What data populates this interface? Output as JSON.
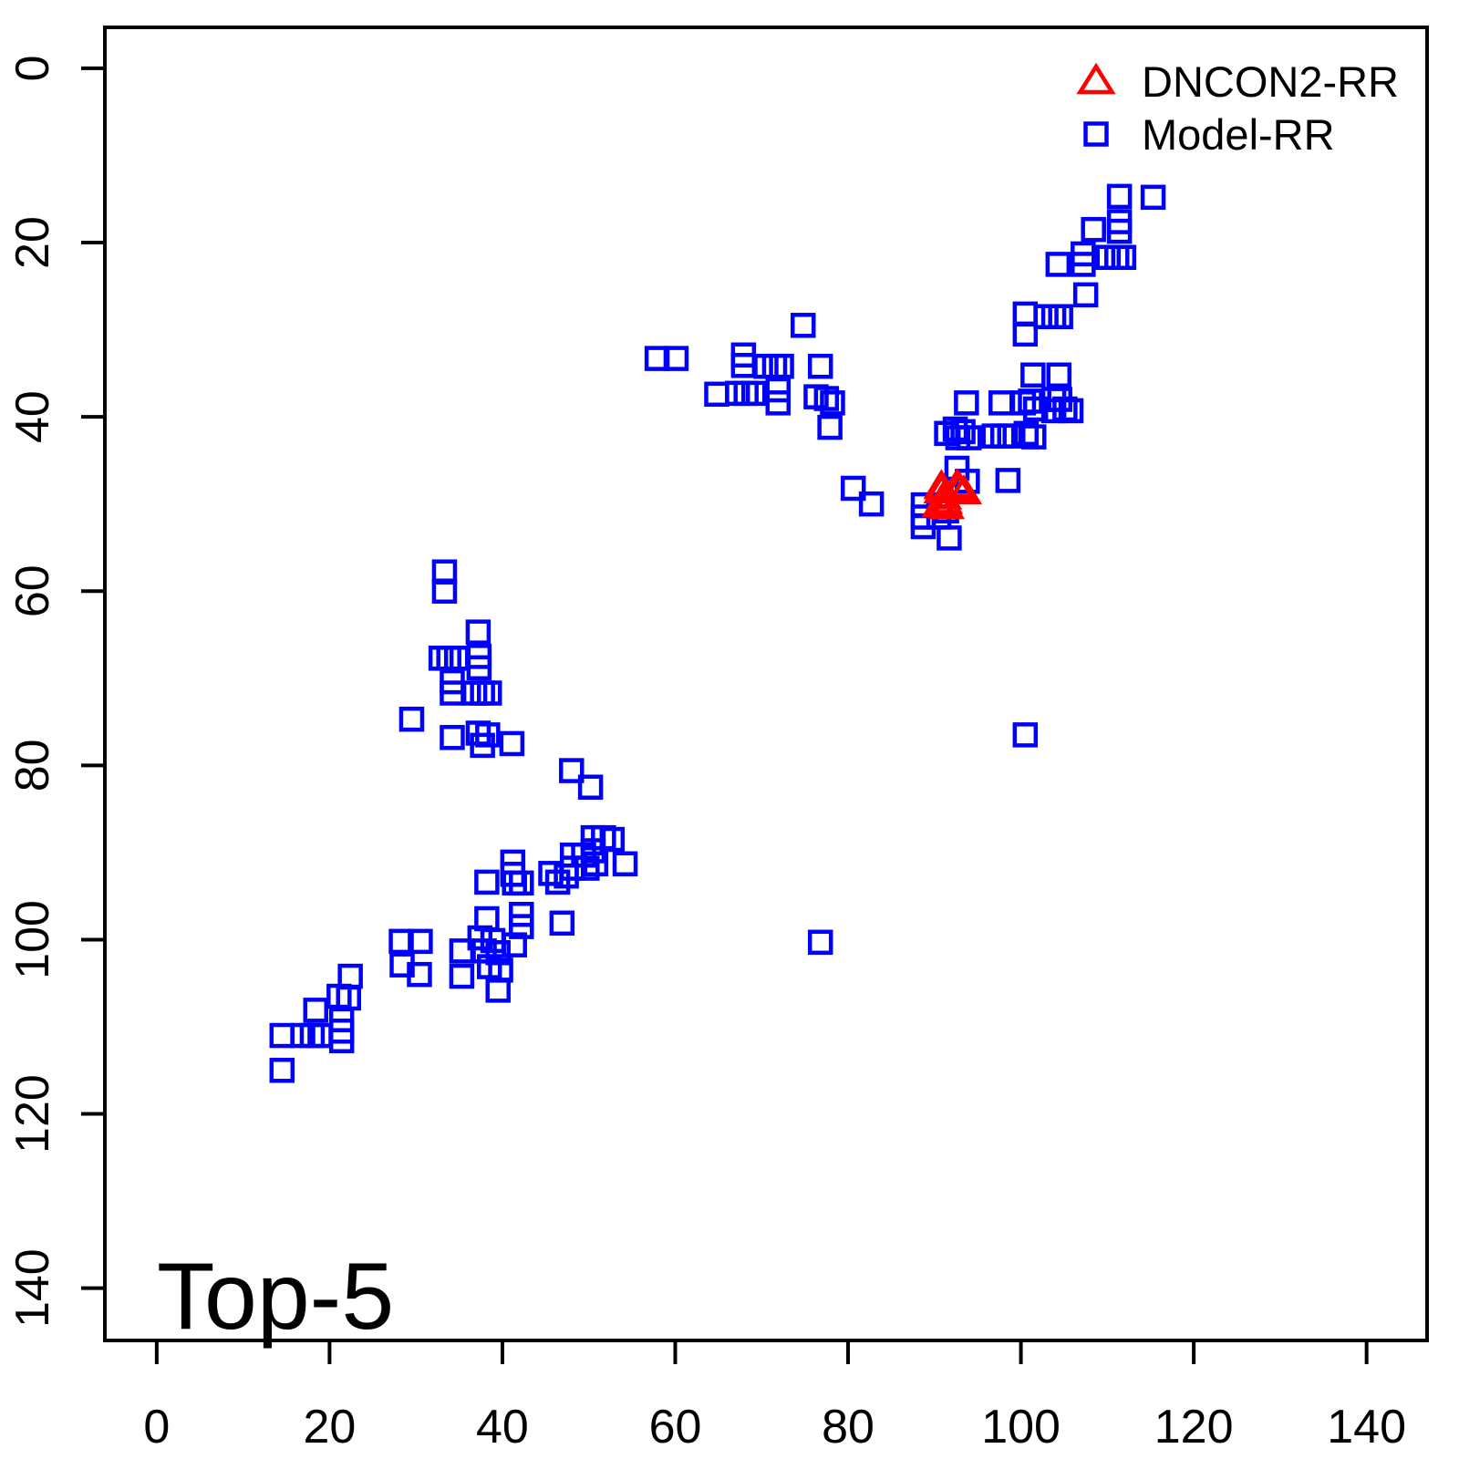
{
  "chart_data": {
    "type": "scatter",
    "title": "",
    "xlabel": "",
    "ylabel": "",
    "annotation": "Top-5",
    "x_ticks": [
      0,
      20,
      40,
      60,
      80,
      100,
      120,
      140
    ],
    "y_ticks": [
      0,
      20,
      40,
      60,
      80,
      100,
      120,
      140
    ],
    "xlim": [
      -6,
      147
    ],
    "ylim": [
      -4.7,
      146
    ],
    "y_axis_reversed": true,
    "grid": false,
    "legend": {
      "position": "top-right",
      "entries": [
        {
          "label": "DNCON2-RR",
          "marker": "open-triangle",
          "color": "#ff0000"
        },
        {
          "label": "Model-RR",
          "marker": "open-square",
          "color": "#0000ff"
        }
      ]
    },
    "series": [
      {
        "name": "DNCON2-RR",
        "marker": "open-triangle",
        "color": "#ff0000",
        "points": [
          [
            90.8,
            48.0
          ],
          [
            92.6,
            47.9
          ],
          [
            92.9,
            48.2
          ],
          [
            90.8,
            48.5
          ],
          [
            91.1,
            49.2
          ],
          [
            91.2,
            49.7
          ],
          [
            90.6,
            50.1
          ],
          [
            91.4,
            50.3
          ],
          [
            93.4,
            48.6
          ]
        ]
      },
      {
        "name": "Model-RR",
        "marker": "open-square",
        "color": "#0000ff",
        "points": [
          [
            111.4,
            14.7
          ],
          [
            115.3,
            14.8
          ],
          [
            111.4,
            17.6
          ],
          [
            111.4,
            18.7
          ],
          [
            108.4,
            18.5
          ],
          [
            107.2,
            21.3
          ],
          [
            107.2,
            22.5
          ],
          [
            110.1,
            21.7
          ],
          [
            111.1,
            21.7
          ],
          [
            111.9,
            21.7
          ],
          [
            104.3,
            22.5
          ],
          [
            107.5,
            26.0
          ],
          [
            100.5,
            28.2
          ],
          [
            100.5,
            30.5
          ],
          [
            102.9,
            28.5
          ],
          [
            103.8,
            28.5
          ],
          [
            104.6,
            28.5
          ],
          [
            101.4,
            35.2
          ],
          [
            104.4,
            35.2
          ],
          [
            93.7,
            38.4
          ],
          [
            97.7,
            38.4
          ],
          [
            100.3,
            38.4
          ],
          [
            101.1,
            38.2
          ],
          [
            101.7,
            39.1
          ],
          [
            103.8,
            38.0
          ],
          [
            104.5,
            38.0
          ],
          [
            103.8,
            39.3
          ],
          [
            105.1,
            39.1
          ],
          [
            105.8,
            39.3
          ],
          [
            91.4,
            41.9
          ],
          [
            92.4,
            41.4
          ],
          [
            93.3,
            41.7
          ],
          [
            92.7,
            42.4
          ],
          [
            94.0,
            42.4
          ],
          [
            96.9,
            42.2
          ],
          [
            97.9,
            42.2
          ],
          [
            98.7,
            42.2
          ],
          [
            100.6,
            41.9
          ],
          [
            101.5,
            42.3
          ],
          [
            74.8,
            29.5
          ],
          [
            57.9,
            33.3
          ],
          [
            60.1,
            33.3
          ],
          [
            67.9,
            32.9
          ],
          [
            67.9,
            34.1
          ],
          [
            70.5,
            34.2
          ],
          [
            71.5,
            34.2
          ],
          [
            72.3,
            34.2
          ],
          [
            76.8,
            34.2
          ],
          [
            64.8,
            37.4
          ],
          [
            67.2,
            37.3
          ],
          [
            68.2,
            37.3
          ],
          [
            69.1,
            37.3
          ],
          [
            71.9,
            36.9
          ],
          [
            71.9,
            38.4
          ],
          [
            76.3,
            37.7
          ],
          [
            77.5,
            37.9
          ],
          [
            78.2,
            38.4
          ],
          [
            77.9,
            41.2
          ],
          [
            80.6,
            48.2
          ],
          [
            82.7,
            50.0
          ],
          [
            92.6,
            45.9
          ],
          [
            93.8,
            47.4
          ],
          [
            98.5,
            47.3
          ],
          [
            88.7,
            50.1
          ],
          [
            88.7,
            51.5
          ],
          [
            88.7,
            52.6
          ],
          [
            90.5,
            50.1
          ],
          [
            90.5,
            51.5
          ],
          [
            91.4,
            50.8
          ],
          [
            91.7,
            53.9
          ],
          [
            100.5,
            76.5
          ],
          [
            76.8,
            100.3
          ],
          [
            33.3,
            57.8
          ],
          [
            33.3,
            60.0
          ],
          [
            37.2,
            64.7
          ],
          [
            32.9,
            67.7
          ],
          [
            33.8,
            67.7
          ],
          [
            34.7,
            67.7
          ],
          [
            37.3,
            67.5
          ],
          [
            37.3,
            68.8
          ],
          [
            34.2,
            70.4
          ],
          [
            34.2,
            71.7
          ],
          [
            36.8,
            71.7
          ],
          [
            37.7,
            71.7
          ],
          [
            38.5,
            71.7
          ],
          [
            29.5,
            74.7
          ],
          [
            34.2,
            76.8
          ],
          [
            37.2,
            76.3
          ],
          [
            38.3,
            76.5
          ],
          [
            37.7,
            77.7
          ],
          [
            41.1,
            77.5
          ],
          [
            48.0,
            80.6
          ],
          [
            50.2,
            82.5
          ],
          [
            50.5,
            88.3
          ],
          [
            51.7,
            88.3
          ],
          [
            52.7,
            88.5
          ],
          [
            48.1,
            90.3
          ],
          [
            49.4,
            90.3
          ],
          [
            50.5,
            89.8
          ],
          [
            50.8,
            91.3
          ],
          [
            49.8,
            91.8
          ],
          [
            48.1,
            91.8
          ],
          [
            47.4,
            92.7
          ],
          [
            46.4,
            93.4
          ],
          [
            45.6,
            92.4
          ],
          [
            54.2,
            91.3
          ],
          [
            41.2,
            91.1
          ],
          [
            41.2,
            92.5
          ],
          [
            41.4,
            93.5
          ],
          [
            42.2,
            93.5
          ],
          [
            38.2,
            93.4
          ],
          [
            38.2,
            97.6
          ],
          [
            42.2,
            97.1
          ],
          [
            42.2,
            98.5
          ],
          [
            46.9,
            98.1
          ],
          [
            35.3,
            101.3
          ],
          [
            35.3,
            104.2
          ],
          [
            37.4,
            99.8
          ],
          [
            38.9,
            100.1
          ],
          [
            37.9,
            101.3
          ],
          [
            39.5,
            101.5
          ],
          [
            41.4,
            100.6
          ],
          [
            38.5,
            103.1
          ],
          [
            39.8,
            103.5
          ],
          [
            39.5,
            105.8
          ],
          [
            28.3,
            100.2
          ],
          [
            30.5,
            100.2
          ],
          [
            28.4,
            102.9
          ],
          [
            30.4,
            104.0
          ],
          [
            22.4,
            104.2
          ],
          [
            21.1,
            106.5
          ],
          [
            22.2,
            106.7
          ],
          [
            18.4,
            108.1
          ],
          [
            21.4,
            109.2
          ],
          [
            21.4,
            110.5
          ],
          [
            21.4,
            111.6
          ],
          [
            14.5,
            111.0
          ],
          [
            16.9,
            111.0
          ],
          [
            18.0,
            111.0
          ],
          [
            18.9,
            111.0
          ],
          [
            14.5,
            115.0
          ]
        ]
      }
    ]
  }
}
